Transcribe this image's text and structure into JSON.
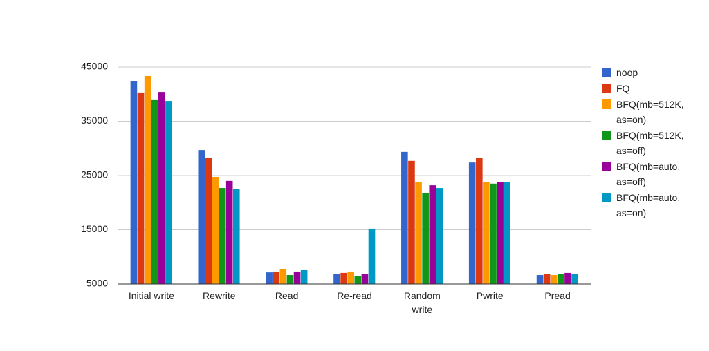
{
  "chart_data": {
    "type": "bar",
    "categories": [
      "Initial write",
      "Rewrite",
      "Read",
      "Re-read",
      "Random write",
      "Pwrite",
      "Pread"
    ],
    "series": [
      {
        "name": "noop",
        "color": "#3366cc",
        "values": [
          42450,
          29700,
          7150,
          6800,
          29350,
          27400,
          6650
        ]
      },
      {
        "name": "FQ",
        "color": "#dc3912",
        "values": [
          40300,
          28200,
          7300,
          7050,
          27700,
          28200,
          6800
        ]
      },
      {
        "name": "BFQ(mb=512K, as=on)",
        "color": "#ff9900",
        "values": [
          43350,
          24750,
          7800,
          7300,
          23750,
          23850,
          6650
        ]
      },
      {
        "name": "BFQ(mb=512K, as=off)",
        "color": "#109618",
        "values": [
          38900,
          22700,
          6650,
          6400,
          21700,
          23500,
          6800
        ]
      },
      {
        "name": "BFQ(mb=auto, as=off)",
        "color": "#990099",
        "values": [
          40400,
          24000,
          7300,
          6900,
          23200,
          23750,
          7050
        ]
      },
      {
        "name": "BFQ(mb=auto, as=on)",
        "color": "#0099c6",
        "values": [
          38750,
          22450,
          7550,
          15200,
          22700,
          23850,
          6800
        ]
      }
    ],
    "ylim": [
      5000,
      45000
    ],
    "yticks": [
      5000,
      15000,
      25000,
      35000,
      45000
    ],
    "grid": true,
    "legend": "right"
  }
}
